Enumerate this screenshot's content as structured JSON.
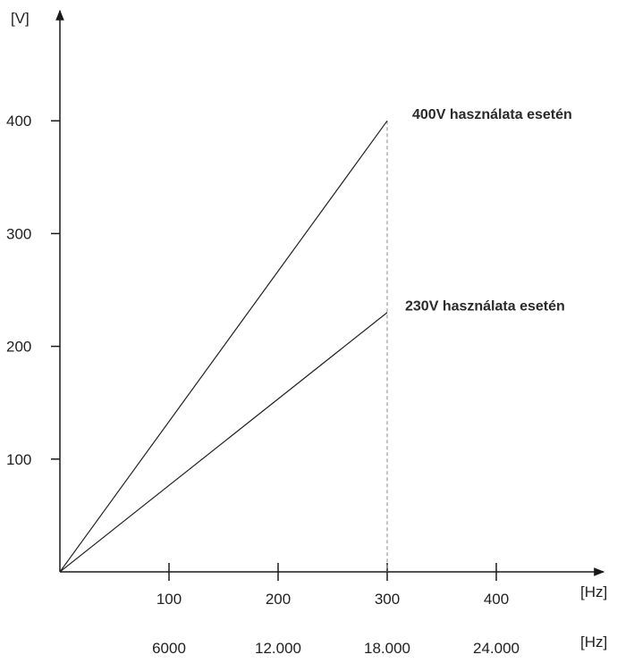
{
  "chart_data": {
    "type": "line",
    "y_unit": "[V]",
    "x_unit": "[Hz]",
    "x2_unit": "[Hz]",
    "ylim": [
      0,
      400
    ],
    "xlim": [
      0,
      400
    ],
    "y_ticks": [
      100,
      200,
      300,
      400
    ],
    "x_ticks": [
      100,
      200,
      300,
      400
    ],
    "x2_ticks": [
      "6000",
      "12.000",
      "18.000",
      "24.000"
    ],
    "series": [
      {
        "name": "400V használata esetén",
        "x": [
          0,
          300
        ],
        "y": [
          0,
          400
        ]
      },
      {
        "name": "230V használata esetén",
        "x": [
          0,
          300
        ],
        "y": [
          0,
          230
        ]
      }
    ],
    "guide_x": 300,
    "grid": false
  }
}
